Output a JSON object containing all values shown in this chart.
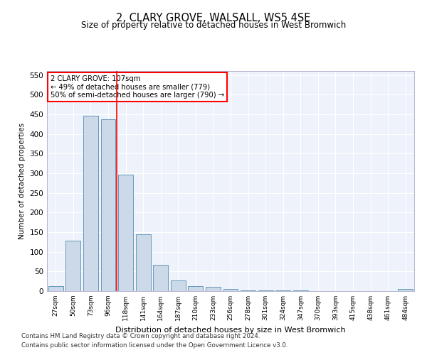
{
  "title": "2, CLARY GROVE, WALSALL, WS5 4SE",
  "subtitle": "Size of property relative to detached houses in West Bromwich",
  "xlabel": "Distribution of detached houses by size in West Bromwich",
  "ylabel": "Number of detached properties",
  "bar_color": "#ccd9e8",
  "bar_edge_color": "#6699bb",
  "background_color": "#eef2fa",
  "grid_color": "#ffffff",
  "categories": [
    "27sqm",
    "50sqm",
    "73sqm",
    "96sqm",
    "118sqm",
    "141sqm",
    "164sqm",
    "187sqm",
    "210sqm",
    "233sqm",
    "256sqm",
    "278sqm",
    "301sqm",
    "324sqm",
    "347sqm",
    "370sqm",
    "393sqm",
    "415sqm",
    "438sqm",
    "461sqm",
    "484sqm"
  ],
  "values": [
    12,
    128,
    447,
    438,
    297,
    145,
    67,
    27,
    13,
    10,
    5,
    2,
    1,
    1,
    1,
    0,
    0,
    0,
    0,
    0,
    5
  ],
  "ylim": [
    0,
    560
  ],
  "yticks": [
    0,
    50,
    100,
    150,
    200,
    250,
    300,
    350,
    400,
    450,
    500,
    550
  ],
  "red_line_x": 3.5,
  "property_label": "2 CLARY GROVE: 107sqm",
  "annotation_line1": "← 49% of detached houses are smaller (779)",
  "annotation_line2": "50% of semi-detached houses are larger (790) →",
  "footnote1": "Contains HM Land Registry data © Crown copyright and database right 2024.",
  "footnote2": "Contains public sector information licensed under the Open Government Licence v3.0."
}
